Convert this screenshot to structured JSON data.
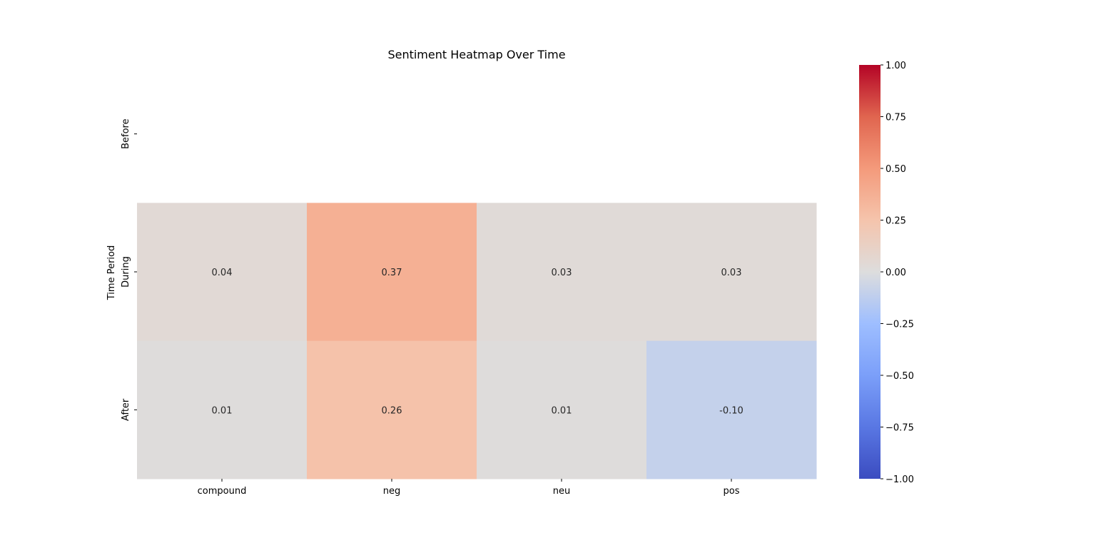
{
  "chart_data": {
    "type": "heatmap",
    "title": "Sentiment Heatmap Over Time",
    "xlabel": "",
    "ylabel": "Time Period",
    "columns": [
      "compound",
      "neg",
      "neu",
      "pos"
    ],
    "rows": [
      "Before",
      "During",
      "After"
    ],
    "values": [
      [
        null,
        null,
        null,
        null
      ],
      [
        0.04,
        0.37,
        0.03,
        0.03
      ],
      [
        0.01,
        0.26,
        0.01,
        -0.1
      ]
    ],
    "cell_labels": [
      [
        null,
        null,
        null,
        null
      ],
      [
        "0.04",
        "0.37",
        "0.03",
        "0.03"
      ],
      [
        "0.01",
        "0.26",
        "0.01",
        "-0.10"
      ]
    ],
    "colormap": "coolwarm",
    "vmin": -1.0,
    "vmax": 1.0,
    "colorbar_ticks": [
      1.0,
      0.75,
      0.5,
      0.25,
      0.0,
      -0.25,
      -0.5,
      -0.75,
      -1.0
    ],
    "colorbar_tick_labels": [
      "1.00",
      "0.75",
      "0.50",
      "0.25",
      "0.00",
      "−0.25",
      "−0.50",
      "−0.75",
      "−1.00"
    ]
  }
}
